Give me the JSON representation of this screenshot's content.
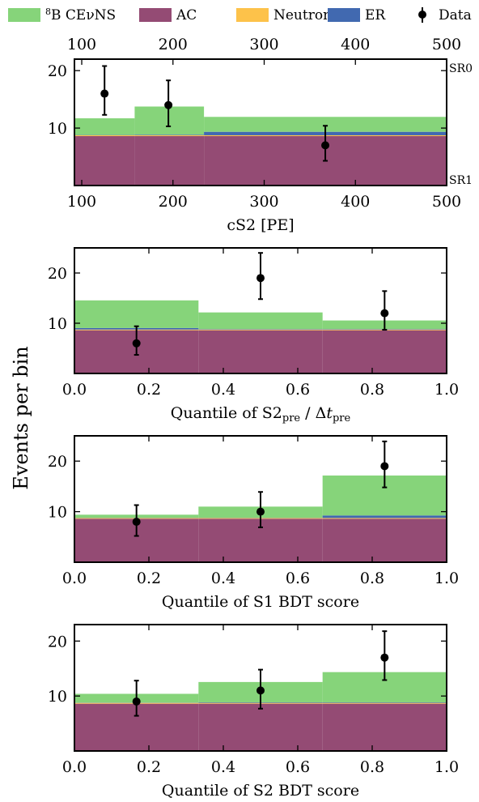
{
  "legend": {
    "items": [
      {
        "sup": "8",
        "label": "B CEνNS",
        "color": "#86d47a",
        "kind": "patch"
      },
      {
        "label": "AC",
        "color": "#944b74",
        "kind": "patch"
      },
      {
        "label": "Neutron",
        "color": "#fdc24a",
        "kind": "patch"
      },
      {
        "label": "ER",
        "color": "#4169b0",
        "kind": "patch"
      },
      {
        "label": "Data",
        "color": "#000000",
        "kind": "errorbar"
      }
    ]
  },
  "ylabel": "Events per bin",
  "colors": {
    "cevns": "#86d47a",
    "ac": "#944b74",
    "neutron": "#fdc24a",
    "er": "#4169b0",
    "data": "#000000"
  },
  "chart_data": [
    {
      "type": "bar",
      "xlabel": "cS2 [PE]",
      "top_axis_ticks": [
        "100",
        "200",
        "300",
        "400",
        "500"
      ],
      "region_labels": [
        "SR0",
        "SR1"
      ],
      "xlim": [
        92,
        500
      ],
      "ylim": [
        0,
        22
      ],
      "xticks": [
        100,
        200,
        300,
        400,
        500
      ],
      "xtick_labels": [
        "100",
        "200",
        "300",
        "400",
        "500"
      ],
      "yticks": [
        10,
        20
      ],
      "ytick_labels": [
        "10",
        "20"
      ],
      "bins": [
        [
          92,
          158
        ],
        [
          158,
          234
        ],
        [
          234,
          500
        ]
      ],
      "stack": {
        "ac": [
          8.6,
          8.6,
          8.6
        ],
        "neutron": [
          0.15,
          0.15,
          0.15
        ],
        "er": [
          0.05,
          0.1,
          0.6
        ],
        "cevns": [
          2.9,
          4.9,
          2.6
        ]
      },
      "data_points": {
        "x": [
          125,
          195,
          367
        ],
        "y": [
          16,
          14,
          7
        ],
        "yerr_low": [
          3.7,
          3.7,
          2.7
        ],
        "yerr_high": [
          4.8,
          4.3,
          3.4
        ]
      }
    },
    {
      "type": "bar",
      "xlabel_prefix": "Quantile of S2",
      "xlabel_sub1": "pre",
      "xlabel_mid": " / Δ",
      "xlabel_it": "t",
      "xlabel_sub2": "pre",
      "xlim": [
        0,
        1
      ],
      "ylim": [
        0,
        25
      ],
      "xticks": [
        0,
        0.2,
        0.4,
        0.6,
        0.8,
        1.0
      ],
      "xtick_labels": [
        "0.0",
        "0.2",
        "0.4",
        "0.6",
        "0.8",
        "1.0"
      ],
      "yticks": [
        10,
        20
      ],
      "ytick_labels": [
        "10",
        "20"
      ],
      "bins": [
        [
          0,
          0.3333
        ],
        [
          0.3333,
          0.6667
        ],
        [
          0.6667,
          1.0
        ]
      ],
      "stack": {
        "ac": [
          8.6,
          8.6,
          8.6
        ],
        "neutron": [
          0.15,
          0.15,
          0.15
        ],
        "er": [
          0.3,
          0.1,
          0.1
        ],
        "cevns": [
          5.5,
          3.3,
          1.7
        ]
      },
      "data_points": {
        "x": [
          0.1667,
          0.5,
          0.8333
        ],
        "y": [
          6,
          19,
          12
        ],
        "yerr_low": [
          2.3,
          4.2,
          3.3
        ],
        "yerr_high": [
          3.4,
          5.0,
          4.4
        ]
      }
    },
    {
      "type": "bar",
      "xlabel": "Quantile of S1 BDT score",
      "xlim": [
        0,
        1
      ],
      "ylim": [
        0,
        25
      ],
      "xticks": [
        0,
        0.2,
        0.4,
        0.6,
        0.8,
        1.0
      ],
      "xtick_labels": [
        "0.0",
        "0.2",
        "0.4",
        "0.6",
        "0.8",
        "1.0"
      ],
      "yticks": [
        10,
        20
      ],
      "ytick_labels": [
        "10",
        "20"
      ],
      "bins": [
        [
          0,
          0.3333
        ],
        [
          0.3333,
          0.6667
        ],
        [
          0.6667,
          1.0
        ]
      ],
      "stack": {
        "ac": [
          8.6,
          8.6,
          8.6
        ],
        "neutron": [
          0.15,
          0.15,
          0.15
        ],
        "er": [
          0.05,
          0.05,
          0.5
        ],
        "cevns": [
          0.6,
          2.2,
          7.9
        ]
      },
      "data_points": {
        "x": [
          0.1667,
          0.5,
          0.8333
        ],
        "y": [
          8,
          10,
          19
        ],
        "yerr_low": [
          2.8,
          3.1,
          4.2
        ],
        "yerr_high": [
          3.3,
          3.9,
          4.9
        ]
      }
    },
    {
      "type": "bar",
      "xlabel": "Quantile of S2 BDT score",
      "xlim": [
        0,
        1
      ],
      "ylim": [
        0,
        23
      ],
      "xticks": [
        0,
        0.2,
        0.4,
        0.6,
        0.8,
        1.0
      ],
      "xtick_labels": [
        "0.0",
        "0.2",
        "0.4",
        "0.6",
        "0.8",
        "1.0"
      ],
      "yticks": [
        10,
        20
      ],
      "ytick_labels": [
        "10",
        "20"
      ],
      "bins": [
        [
          0,
          0.3333
        ],
        [
          0.3333,
          0.6667
        ],
        [
          0.6667,
          1.0
        ]
      ],
      "stack": {
        "ac": [
          8.6,
          8.6,
          8.6
        ],
        "neutron": [
          0.15,
          0.15,
          0.15
        ],
        "er": [
          0.05,
          0.1,
          0.1
        ],
        "cevns": [
          1.6,
          3.7,
          5.5
        ]
      },
      "data_points": {
        "x": [
          0.1667,
          0.5,
          0.8333
        ],
        "y": [
          9,
          11,
          17
        ],
        "yerr_low": [
          2.6,
          3.3,
          4.1
        ],
        "yerr_high": [
          3.8,
          3.8,
          4.8
        ]
      }
    }
  ]
}
